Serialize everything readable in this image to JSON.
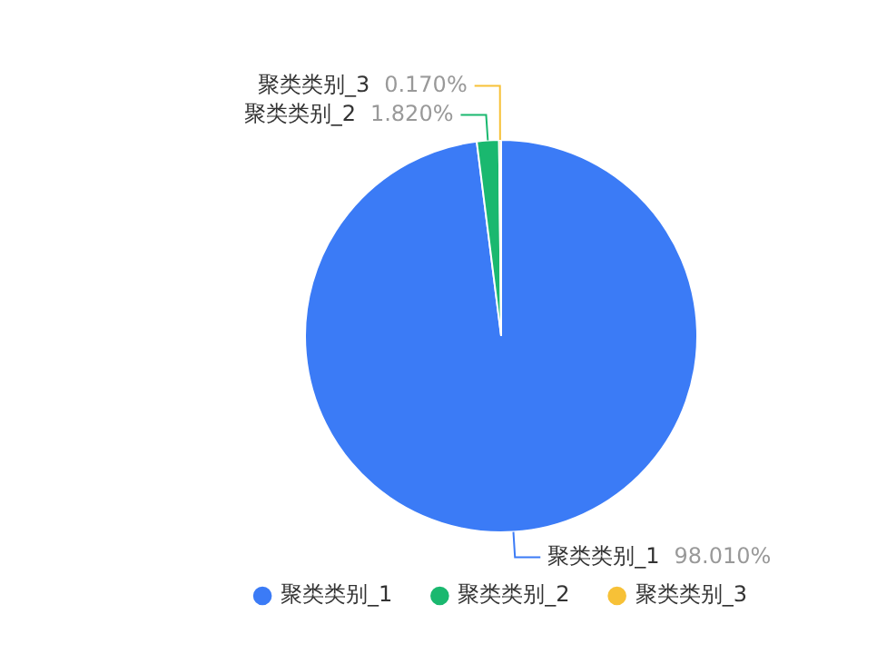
{
  "chart_data": {
    "type": "pie",
    "categories": [
      "聚类类别_1",
      "聚类类别_2",
      "聚类类别_3"
    ],
    "values": [
      98.01,
      1.82,
      0.17
    ],
    "colors": [
      "#3b7bf6",
      "#1ab86f",
      "#f7c137"
    ],
    "value_labels": [
      "98.010%",
      "1.820%",
      "0.170%"
    ],
    "legend": "bottom"
  }
}
